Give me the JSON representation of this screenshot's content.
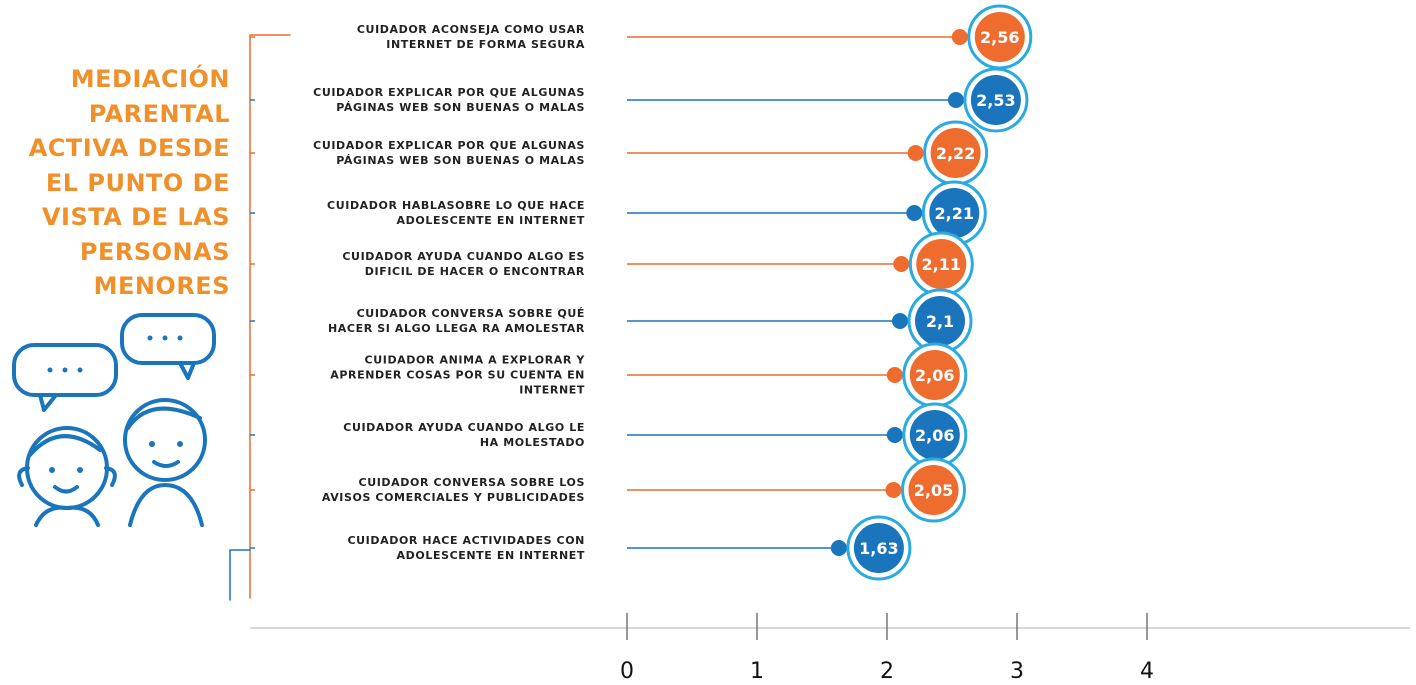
{
  "chart_data": {
    "type": "lollipop",
    "title": "MEDIACIÓN\nPARENTAL\nACTIVA DESDE\nEL PUNTO DE\nVISTA DE  LAS\nPERSONAS\nMENORES",
    "categories": [
      "CUIDADOR ACONSEJA COMO USAR\nINTERNET DE FORMA SEGURA",
      "CUIDADOR EXPLICAR POR QUE ALGUNAS\nPÁGINAS WEB  SON BUENAS O MALAS",
      "CUIDADOR EXPLICAR POR QUE ALGUNAS\nPÁGINAS WEB  SON BUENAS O MALAS",
      "CUIDADOR HABLASOBRE LO QUE HACE\nADOLESCENTE EN INTERNET",
      "CUIDADOR AYUDA CUANDO ALGO ES\nDIFICIL DE HACER O ENCONTRAR",
      "CUIDADOR CONVERSA SOBRE QUÉ\nHACER SI ALGO LLEGA RA  AMOLESTAR",
      "CUIDADOR ANIMA A EXPLORAR Y\nAPRENDER COSAS POR SU CUENTA EN\nINTERNET",
      "CUIDADOR AYUDA CUANDO ALGO LE\nHA MOLESTADO",
      "CUIDADOR CONVERSA SOBRE LOS\nAVISOS COMERCIALES Y PUBLICIDADES",
      "CUIDADOR HACE ACTIVIDADES    CON\nADOLESCENTE EN INTERNET"
    ],
    "values": [
      2.56,
      2.53,
      2.22,
      2.21,
      2.11,
      2.1,
      2.06,
      2.06,
      2.05,
      1.63
    ],
    "value_labels": [
      "2,56",
      "2,53",
      "2,22",
      "2,21",
      "2,11",
      "2,1",
      "2,06",
      "2,06",
      "2,05",
      "1,63"
    ],
    "colors": [
      "#ef6c2f",
      "#1a75bc",
      "#ef6c2f",
      "#1a75bc",
      "#ef6c2f",
      "#1a75bc",
      "#ef6c2f",
      "#1a75bc",
      "#ef6c2f",
      "#1a75bc"
    ],
    "xlim": [
      0,
      4
    ],
    "xticks": [
      0,
      1,
      2,
      3,
      4
    ]
  }
}
